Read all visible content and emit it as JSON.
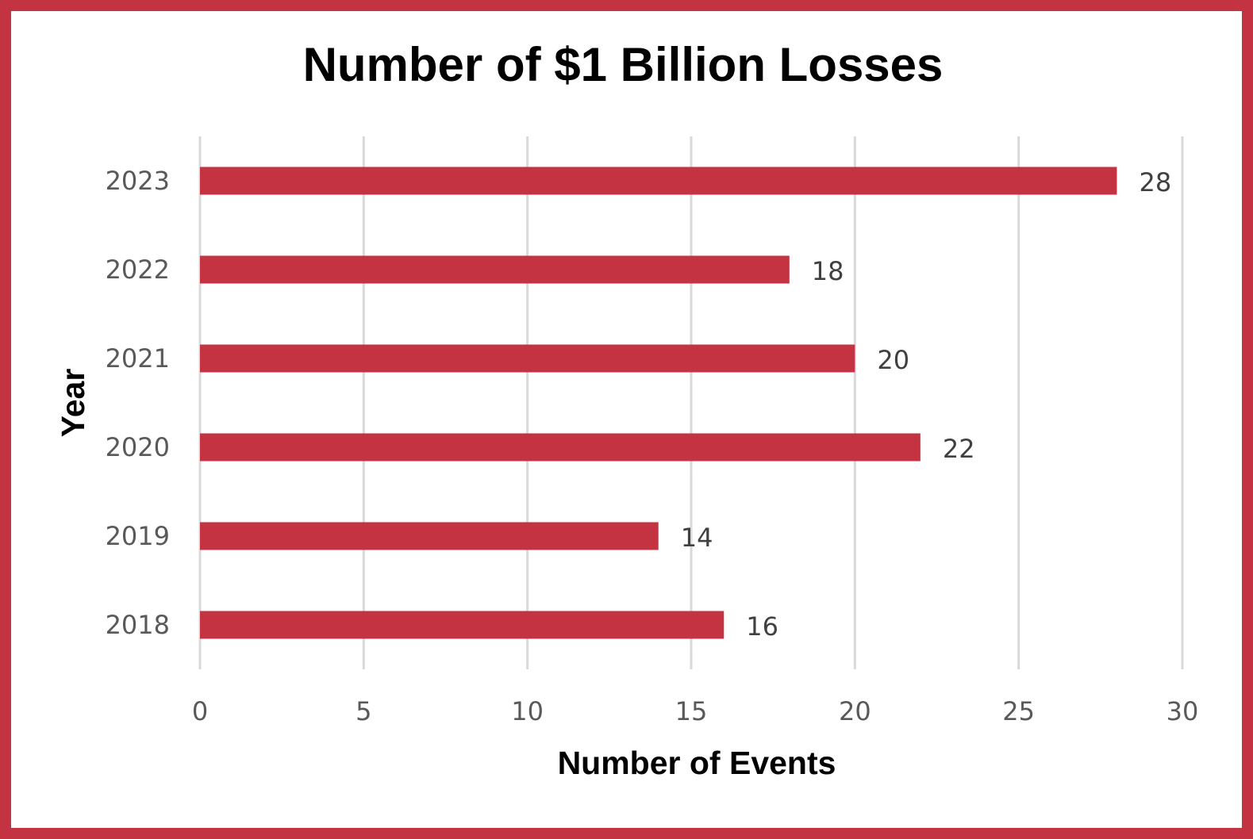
{
  "chart_data": {
    "type": "bar",
    "orientation": "horizontal",
    "title": "Number of $1 Billion Losses",
    "xlabel": "Number of Events",
    "ylabel": "Year",
    "categories": [
      "2023",
      "2022",
      "2021",
      "2020",
      "2019",
      "2018"
    ],
    "values": [
      28,
      18,
      20,
      22,
      14,
      16
    ],
    "value_labels": [
      "28",
      "18",
      "20",
      "22",
      "14",
      "16"
    ],
    "xlim": [
      0,
      30
    ],
    "x_ticks": [
      "0",
      "5",
      "10",
      "15",
      "20",
      "25",
      "30"
    ],
    "x_tick_values": [
      0,
      5,
      10,
      15,
      20,
      25,
      30
    ],
    "grid": true,
    "legend": "none",
    "bar_color": "#c33341",
    "frame_color": "#c33341"
  }
}
